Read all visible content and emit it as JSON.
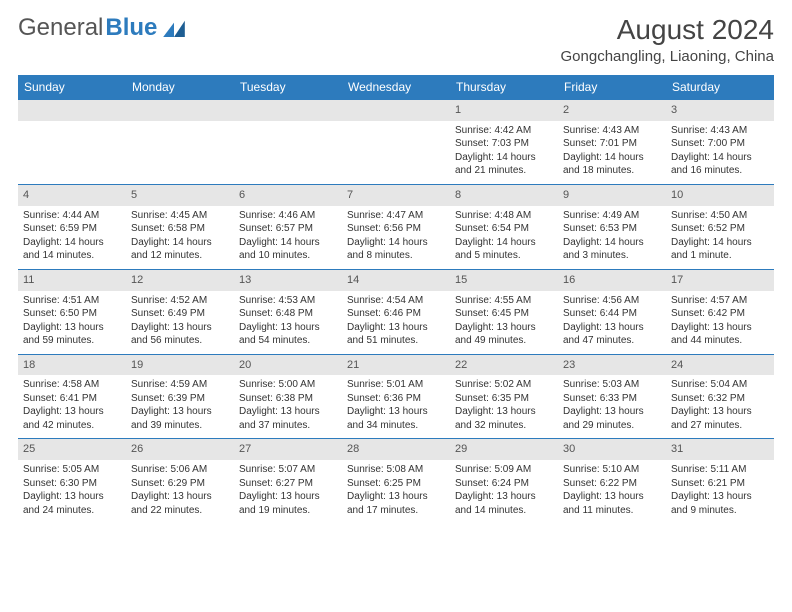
{
  "logo": {
    "part1": "General",
    "part2": "Blue"
  },
  "header": {
    "title": "August 2024",
    "location": "Gongchangling, Liaoning, China"
  },
  "colors": {
    "header_bg": "#2d7bbd",
    "header_text": "#ffffff",
    "daynum_bg": "#e6e6e6",
    "border": "#2d7bbd",
    "body_text": "#333333",
    "logo_accent": "#2d7bbd"
  },
  "weekdays": [
    "Sunday",
    "Monday",
    "Tuesday",
    "Wednesday",
    "Thursday",
    "Friday",
    "Saturday"
  ],
  "weeks": [
    [
      null,
      null,
      null,
      null,
      {
        "n": "1",
        "sunrise": "Sunrise: 4:42 AM",
        "sunset": "Sunset: 7:03 PM",
        "daylight": "Daylight: 14 hours and 21 minutes."
      },
      {
        "n": "2",
        "sunrise": "Sunrise: 4:43 AM",
        "sunset": "Sunset: 7:01 PM",
        "daylight": "Daylight: 14 hours and 18 minutes."
      },
      {
        "n": "3",
        "sunrise": "Sunrise: 4:43 AM",
        "sunset": "Sunset: 7:00 PM",
        "daylight": "Daylight: 14 hours and 16 minutes."
      }
    ],
    [
      {
        "n": "4",
        "sunrise": "Sunrise: 4:44 AM",
        "sunset": "Sunset: 6:59 PM",
        "daylight": "Daylight: 14 hours and 14 minutes."
      },
      {
        "n": "5",
        "sunrise": "Sunrise: 4:45 AM",
        "sunset": "Sunset: 6:58 PM",
        "daylight": "Daylight: 14 hours and 12 minutes."
      },
      {
        "n": "6",
        "sunrise": "Sunrise: 4:46 AM",
        "sunset": "Sunset: 6:57 PM",
        "daylight": "Daylight: 14 hours and 10 minutes."
      },
      {
        "n": "7",
        "sunrise": "Sunrise: 4:47 AM",
        "sunset": "Sunset: 6:56 PM",
        "daylight": "Daylight: 14 hours and 8 minutes."
      },
      {
        "n": "8",
        "sunrise": "Sunrise: 4:48 AM",
        "sunset": "Sunset: 6:54 PM",
        "daylight": "Daylight: 14 hours and 5 minutes."
      },
      {
        "n": "9",
        "sunrise": "Sunrise: 4:49 AM",
        "sunset": "Sunset: 6:53 PM",
        "daylight": "Daylight: 14 hours and 3 minutes."
      },
      {
        "n": "10",
        "sunrise": "Sunrise: 4:50 AM",
        "sunset": "Sunset: 6:52 PM",
        "daylight": "Daylight: 14 hours and 1 minute."
      }
    ],
    [
      {
        "n": "11",
        "sunrise": "Sunrise: 4:51 AM",
        "sunset": "Sunset: 6:50 PM",
        "daylight": "Daylight: 13 hours and 59 minutes."
      },
      {
        "n": "12",
        "sunrise": "Sunrise: 4:52 AM",
        "sunset": "Sunset: 6:49 PM",
        "daylight": "Daylight: 13 hours and 56 minutes."
      },
      {
        "n": "13",
        "sunrise": "Sunrise: 4:53 AM",
        "sunset": "Sunset: 6:48 PM",
        "daylight": "Daylight: 13 hours and 54 minutes."
      },
      {
        "n": "14",
        "sunrise": "Sunrise: 4:54 AM",
        "sunset": "Sunset: 6:46 PM",
        "daylight": "Daylight: 13 hours and 51 minutes."
      },
      {
        "n": "15",
        "sunrise": "Sunrise: 4:55 AM",
        "sunset": "Sunset: 6:45 PM",
        "daylight": "Daylight: 13 hours and 49 minutes."
      },
      {
        "n": "16",
        "sunrise": "Sunrise: 4:56 AM",
        "sunset": "Sunset: 6:44 PM",
        "daylight": "Daylight: 13 hours and 47 minutes."
      },
      {
        "n": "17",
        "sunrise": "Sunrise: 4:57 AM",
        "sunset": "Sunset: 6:42 PM",
        "daylight": "Daylight: 13 hours and 44 minutes."
      }
    ],
    [
      {
        "n": "18",
        "sunrise": "Sunrise: 4:58 AM",
        "sunset": "Sunset: 6:41 PM",
        "daylight": "Daylight: 13 hours and 42 minutes."
      },
      {
        "n": "19",
        "sunrise": "Sunrise: 4:59 AM",
        "sunset": "Sunset: 6:39 PM",
        "daylight": "Daylight: 13 hours and 39 minutes."
      },
      {
        "n": "20",
        "sunrise": "Sunrise: 5:00 AM",
        "sunset": "Sunset: 6:38 PM",
        "daylight": "Daylight: 13 hours and 37 minutes."
      },
      {
        "n": "21",
        "sunrise": "Sunrise: 5:01 AM",
        "sunset": "Sunset: 6:36 PM",
        "daylight": "Daylight: 13 hours and 34 minutes."
      },
      {
        "n": "22",
        "sunrise": "Sunrise: 5:02 AM",
        "sunset": "Sunset: 6:35 PM",
        "daylight": "Daylight: 13 hours and 32 minutes."
      },
      {
        "n": "23",
        "sunrise": "Sunrise: 5:03 AM",
        "sunset": "Sunset: 6:33 PM",
        "daylight": "Daylight: 13 hours and 29 minutes."
      },
      {
        "n": "24",
        "sunrise": "Sunrise: 5:04 AM",
        "sunset": "Sunset: 6:32 PM",
        "daylight": "Daylight: 13 hours and 27 minutes."
      }
    ],
    [
      {
        "n": "25",
        "sunrise": "Sunrise: 5:05 AM",
        "sunset": "Sunset: 6:30 PM",
        "daylight": "Daylight: 13 hours and 24 minutes."
      },
      {
        "n": "26",
        "sunrise": "Sunrise: 5:06 AM",
        "sunset": "Sunset: 6:29 PM",
        "daylight": "Daylight: 13 hours and 22 minutes."
      },
      {
        "n": "27",
        "sunrise": "Sunrise: 5:07 AM",
        "sunset": "Sunset: 6:27 PM",
        "daylight": "Daylight: 13 hours and 19 minutes."
      },
      {
        "n": "28",
        "sunrise": "Sunrise: 5:08 AM",
        "sunset": "Sunset: 6:25 PM",
        "daylight": "Daylight: 13 hours and 17 minutes."
      },
      {
        "n": "29",
        "sunrise": "Sunrise: 5:09 AM",
        "sunset": "Sunset: 6:24 PM",
        "daylight": "Daylight: 13 hours and 14 minutes."
      },
      {
        "n": "30",
        "sunrise": "Sunrise: 5:10 AM",
        "sunset": "Sunset: 6:22 PM",
        "daylight": "Daylight: 13 hours and 11 minutes."
      },
      {
        "n": "31",
        "sunrise": "Sunrise: 5:11 AM",
        "sunset": "Sunset: 6:21 PM",
        "daylight": "Daylight: 13 hours and 9 minutes."
      }
    ]
  ]
}
